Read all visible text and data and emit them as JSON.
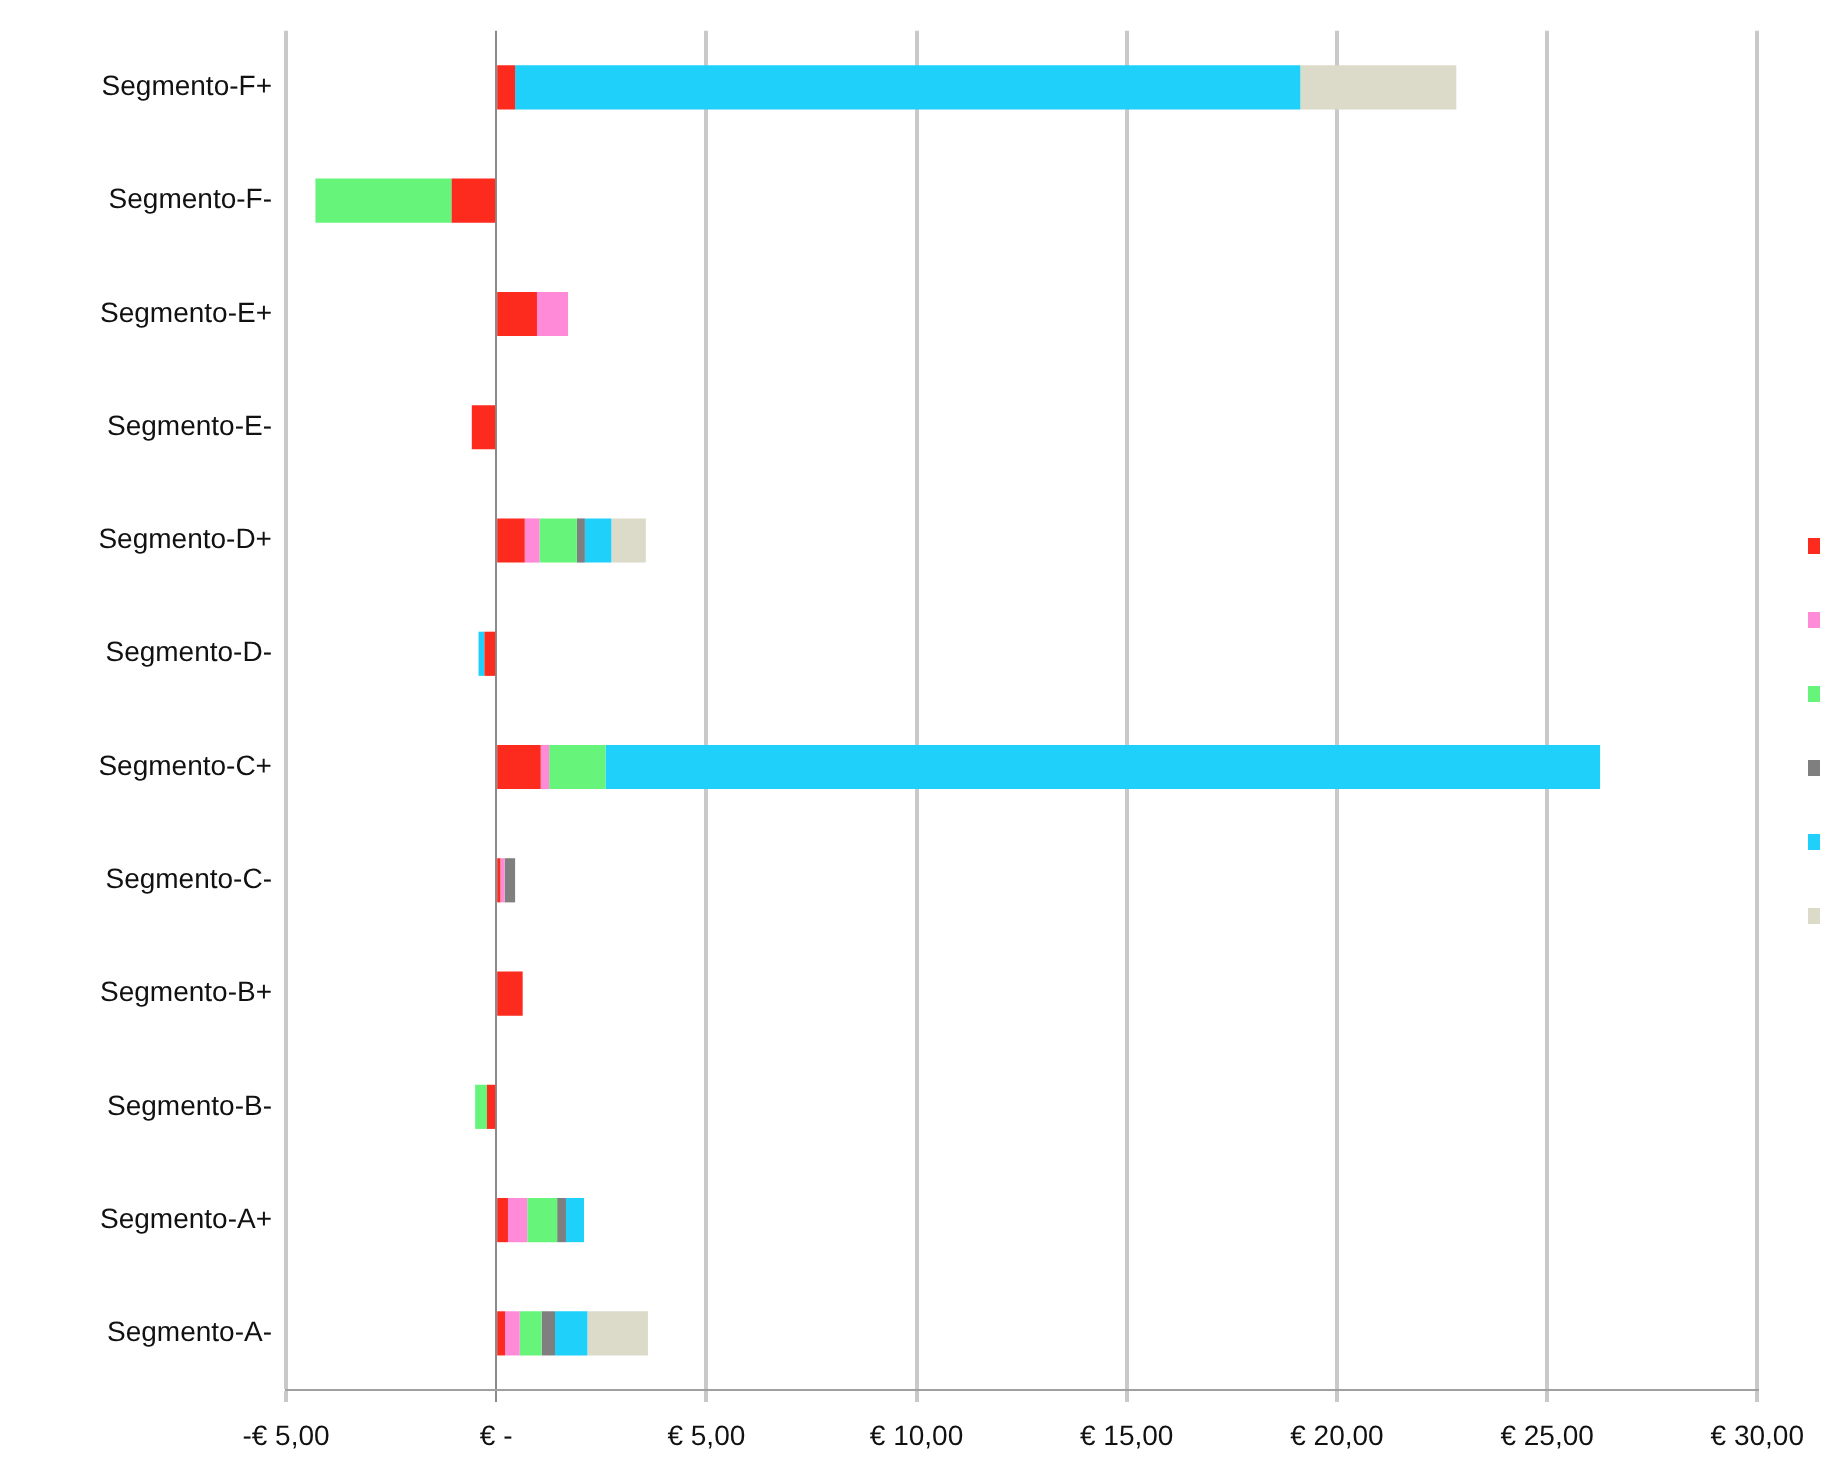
{
  "chart_data": {
    "type": "bar",
    "orientation": "horizontal",
    "stacked": true,
    "categories": [
      "Segmento-F+",
      "Segmento-F-",
      "Segmento-E+",
      "Segmento-E-",
      "Segmento-D+",
      "Segmento-D-",
      "Segmento-C+",
      "Segmento-C-",
      "Segmento-B+",
      "Segmento-B-",
      "Segmento-A+",
      "Segmento-A-"
    ],
    "series": [
      {
        "color": "#fd2a1e",
        "values": [
          0.45,
          -1.06,
          0.97,
          -0.58,
          0.68,
          -0.28,
          1.06,
          0.1,
          0.63,
          -0.22,
          0.28,
          0.21
        ]
      },
      {
        "color": "#ff8ad8",
        "values": [
          null,
          null,
          0.74,
          null,
          0.35,
          null,
          0.2,
          0.1,
          null,
          null,
          0.46,
          0.35
        ]
      },
      {
        "color": "#66f57a",
        "values": [
          null,
          -3.24,
          null,
          null,
          0.89,
          null,
          1.34,
          null,
          null,
          -0.28,
          0.71,
          0.52
        ]
      },
      {
        "color": "#7f7f7f",
        "values": [
          null,
          null,
          null,
          null,
          0.19,
          null,
          null,
          0.25,
          null,
          null,
          0.21,
          0.32
        ]
      },
      {
        "color": "#1fd0fb",
        "values": [
          18.68,
          null,
          null,
          null,
          0.63,
          -0.14,
          23.66,
          null,
          null,
          null,
          0.43,
          0.77
        ]
      },
      {
        "color": "#dcdac8",
        "values": [
          3.71,
          null,
          null,
          null,
          0.82,
          null,
          null,
          null,
          null,
          null,
          null,
          1.44
        ]
      }
    ],
    "xlim": [
      -5,
      30
    ],
    "xticks": [
      {
        "value": -5,
        "label": "-€ 5,00"
      },
      {
        "value": 0,
        "label": "€ -"
      },
      {
        "value": 5,
        "label": "€ 5,00"
      },
      {
        "value": 10,
        "label": "€ 10,00"
      },
      {
        "value": 15,
        "label": "€ 15,00"
      },
      {
        "value": 20,
        "label": "€ 20,00"
      },
      {
        "value": 25,
        "label": "€ 25,00"
      },
      {
        "value": 30,
        "label": "€ 30,00"
      }
    ],
    "grid": "x"
  }
}
